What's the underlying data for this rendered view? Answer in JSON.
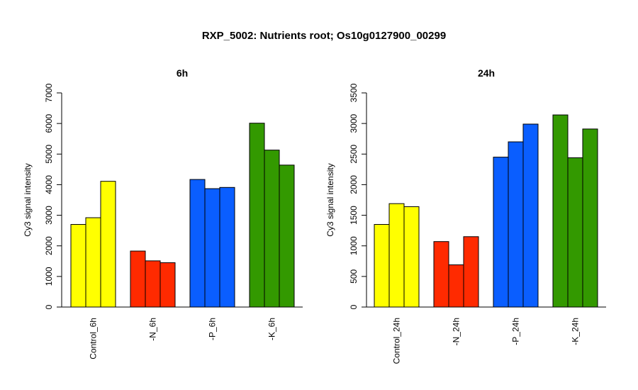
{
  "figure": {
    "title": "RXP_5002: Nutrients root; Os10g0127900_00299"
  },
  "chart_data": [
    {
      "type": "bar",
      "title": "6h",
      "xlabel": "",
      "ylabel": "Cy3 signal intensity",
      "ylim": [
        0,
        7000
      ],
      "yticks": [
        0,
        1000,
        2000,
        3000,
        4000,
        5000,
        6000,
        7000
      ],
      "grid": false,
      "legend": "none",
      "categories": [
        "Control_6h",
        "-N_6h",
        "-P_6h",
        "-K_6h"
      ],
      "colors": [
        "#ffff00",
        "#ff2a00",
        "#0a5eff",
        "#339900"
      ],
      "values": [
        [
          2700,
          2920,
          4110
        ],
        [
          1830,
          1510,
          1450
        ],
        [
          4170,
          3870,
          3910
        ],
        [
          6010,
          5130,
          4640
        ]
      ]
    },
    {
      "type": "bar",
      "title": "24h",
      "xlabel": "",
      "ylabel": "Cy3 signal intensity",
      "ylim": [
        0,
        3500
      ],
      "yticks": [
        0,
        500,
        1000,
        1500,
        2000,
        2500,
        3000,
        3500
      ],
      "grid": false,
      "legend": "none",
      "categories": [
        "Control_24h",
        "-N_24h",
        "-P_24h",
        "-K_24h"
      ],
      "colors": [
        "#ffff00",
        "#ff2a00",
        "#0a5eff",
        "#339900"
      ],
      "values": [
        [
          1350,
          1690,
          1640
        ],
        [
          1070,
          690,
          1150
        ],
        [
          2450,
          2700,
          2990
        ],
        [
          3140,
          2440,
          2910
        ]
      ]
    }
  ]
}
